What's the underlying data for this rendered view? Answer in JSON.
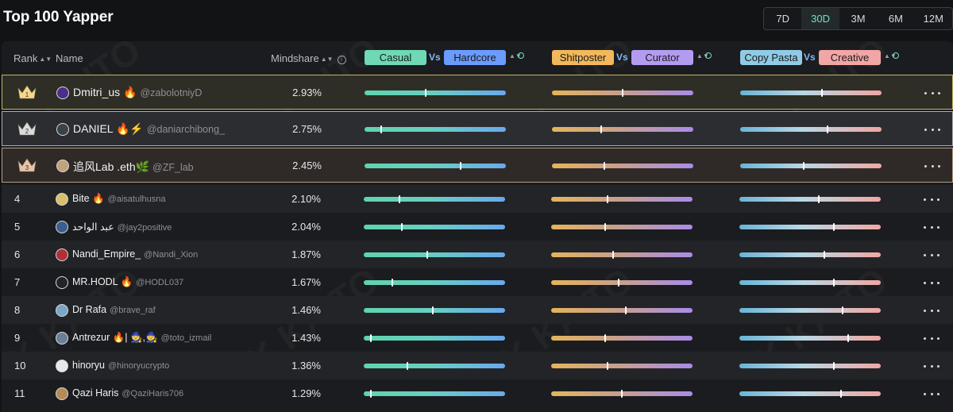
{
  "title": "Top 100 Yapper",
  "periods": [
    {
      "label": "7D",
      "active": false
    },
    {
      "label": "30D",
      "active": true
    },
    {
      "label": "3M",
      "active": false
    },
    {
      "label": "6M",
      "active": false
    },
    {
      "label": "12M",
      "active": false
    }
  ],
  "header": {
    "rank": "Rank",
    "name": "Name",
    "mindshare": "Mindshare",
    "axes": [
      {
        "left": "Casual",
        "left_color": "#6ed9b4",
        "vs": "Vs",
        "right": "Hardcore",
        "right_color": "#6a9bff"
      },
      {
        "left": "Shitposter",
        "left_color": "#f1b85c",
        "vs": "Vs",
        "right": "Curator",
        "right_color": "#b39cf0"
      },
      {
        "left": "Copy Pasta",
        "left_color": "#8fcbe6",
        "vs": "Vs",
        "right": "Creative",
        "right_color": "#f2a5a5"
      }
    ]
  },
  "rows": [
    {
      "rank": "1",
      "name": "Dmitri_us 🔥",
      "handle": "@zabolotniyD",
      "mindshare": "2.93%",
      "avatar_color": "#4b2d8a",
      "sliders": [
        0.43,
        0.5,
        0.58
      ]
    },
    {
      "rank": "2",
      "name": "DANIEL 🔥⚡",
      "handle": "@daniarchibong_",
      "mindshare": "2.75%",
      "avatar_color": "#39424a",
      "sliders": [
        0.12,
        0.35,
        0.62
      ]
    },
    {
      "rank": "3",
      "name": "追风Lab .eth🌿",
      "handle": "@ZF_lab",
      "mindshare": "2.45%",
      "avatar_color": "#c2a27a",
      "sliders": [
        0.68,
        0.37,
        0.45
      ]
    },
    {
      "rank": "4",
      "name": "Bite 🔥",
      "handle": "@aisatulhusna",
      "mindshare": "2.10%",
      "avatar_color": "#d8c06a",
      "sliders": [
        0.25,
        0.4,
        0.56
      ]
    },
    {
      "rank": "5",
      "name": "عبد الواحد",
      "handle": "@jay2positive",
      "mindshare": "2.04%",
      "avatar_color": "#3a5f8f",
      "sliders": [
        0.27,
        0.38,
        0.67
      ]
    },
    {
      "rank": "6",
      "name": "Nandi_Empire_",
      "handle": "@Nandi_Xion",
      "mindshare": "1.87%",
      "avatar_color": "#b0303a",
      "sliders": [
        0.45,
        0.44,
        0.6
      ]
    },
    {
      "rank": "7",
      "name": "MR.HODL 🔥",
      "handle": "@HODL037",
      "mindshare": "1.67%",
      "avatar_color": "#222528",
      "sliders": [
        0.2,
        0.48,
        0.67
      ]
    },
    {
      "rank": "8",
      "name": "Dr Rafa",
      "handle": "@brave_raf",
      "mindshare": "1.46%",
      "avatar_color": "#7aa6c8",
      "sliders": [
        0.49,
        0.53,
        0.73
      ]
    },
    {
      "rank": "9",
      "name": "Antrezur 🔥| 🧙,🧙",
      "handle": "@toto_izmail",
      "mindshare": "1.43%",
      "avatar_color": "#6b7f99",
      "sliders": [
        0.05,
        0.38,
        0.77
      ]
    },
    {
      "rank": "10",
      "name": "hinoryu",
      "handle": "@hinoryucrypto",
      "mindshare": "1.36%",
      "avatar_color": "#e8e8e8",
      "sliders": [
        0.31,
        0.4,
        0.67
      ]
    },
    {
      "rank": "11",
      "name": "Qazi Haris",
      "handle": "@QaziHaris706",
      "mindshare": "1.29%",
      "avatar_color": "#b58a55",
      "sliders": [
        0.05,
        0.5,
        0.72
      ]
    }
  ]
}
